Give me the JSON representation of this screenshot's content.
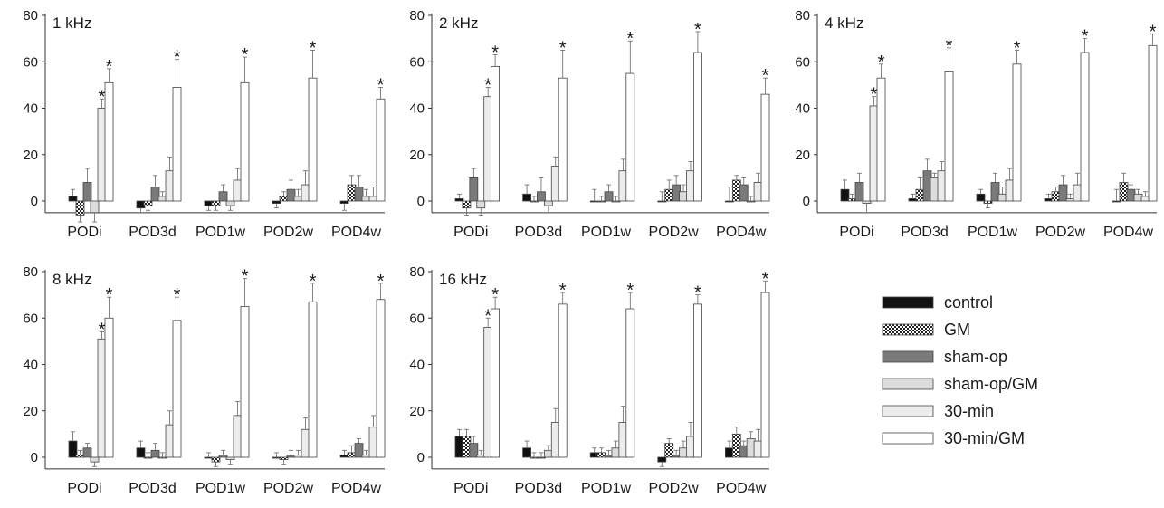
{
  "colors": {
    "control": "#111111",
    "GM": "pattern-checker",
    "sham-op": "#7a7a7a",
    "sham-op/GM": "#dcdcdc",
    "30-min": "#ececec",
    "30-min/GM": "#ffffff",
    "axis": "#333333"
  },
  "legend": {
    "items": [
      {
        "name": "control"
      },
      {
        "name": "GM"
      },
      {
        "name": "sham-op"
      },
      {
        "name": "sham-op/GM"
      },
      {
        "name": "30-min"
      },
      {
        "name": "30-min/GM"
      }
    ]
  },
  "chart_data": [
    {
      "type": "bar",
      "title": "1 kHz",
      "categories": [
        "PODi",
        "POD3d",
        "POD1w",
        "POD2w",
        "POD4w"
      ],
      "ylim": [
        -5,
        80
      ],
      "yticks": [
        "0",
        "20",
        "40",
        "60",
        "80"
      ],
      "series": [
        {
          "name": "control",
          "values": [
            2,
            -3,
            -2,
            -1,
            -1
          ],
          "errors": [
            3,
            2,
            2,
            2,
            3
          ]
        },
        {
          "name": "GM",
          "values": [
            -6,
            -2,
            -2,
            2,
            7
          ],
          "errors": [
            3,
            2,
            2,
            2,
            4
          ]
        },
        {
          "name": "sham-op",
          "values": [
            8,
            6,
            4,
            5,
            6
          ],
          "errors": [
            6,
            5,
            3,
            4,
            5
          ]
        },
        {
          "name": "sham-op/GM",
          "values": [
            -5,
            2,
            -2,
            2,
            2
          ],
          "errors": [
            4,
            2,
            2,
            3,
            3
          ]
        },
        {
          "name": "30-min",
          "values": [
            40,
            13,
            9,
            7,
            2
          ],
          "errors": [
            4,
            6,
            5,
            6,
            4
          ]
        },
        {
          "name": "30-min/GM",
          "values": [
            51,
            49,
            51,
            53,
            44
          ],
          "errors": [
            6,
            12,
            11,
            12,
            5
          ]
        }
      ],
      "annotations": [
        {
          "text": "*",
          "category": "PODi",
          "series": "30-min"
        },
        {
          "text": "*",
          "category": "PODi",
          "series": "30-min/GM"
        },
        {
          "text": "*",
          "category": "POD3d",
          "series": "30-min/GM"
        },
        {
          "text": "*",
          "category": "POD1w",
          "series": "30-min/GM"
        },
        {
          "text": "*",
          "category": "POD2w",
          "series": "30-min/GM"
        },
        {
          "text": "*",
          "category": "POD4w",
          "series": "30-min/GM"
        }
      ]
    },
    {
      "type": "bar",
      "title": "2 kHz",
      "categories": [
        "PODi",
        "POD3d",
        "POD1w",
        "POD2w",
        "POD4w"
      ],
      "ylim": [
        -5,
        80
      ],
      "yticks": [
        "0",
        "20",
        "40",
        "60",
        "80"
      ],
      "series": [
        {
          "name": "control",
          "values": [
            1,
            3,
            0,
            0,
            0
          ],
          "errors": [
            2,
            4,
            5,
            4,
            6
          ]
        },
        {
          "name": "GM",
          "values": [
            -3,
            0,
            0,
            5,
            9
          ],
          "errors": [
            3,
            2,
            2,
            4,
            2
          ]
        },
        {
          "name": "sham-op",
          "values": [
            10,
            4,
            4,
            7,
            7
          ],
          "errors": [
            4,
            6,
            3,
            4,
            3
          ]
        },
        {
          "name": "sham-op/GM",
          "values": [
            -3,
            -2,
            0,
            4,
            0
          ],
          "errors": [
            3,
            3,
            2,
            3,
            2
          ]
        },
        {
          "name": "30-min",
          "values": [
            45,
            15,
            13,
            13,
            8
          ],
          "errors": [
            4,
            4,
            5,
            4,
            4
          ]
        },
        {
          "name": "30-min/GM",
          "values": [
            58,
            53,
            55,
            64,
            46
          ],
          "errors": [
            5,
            12,
            14,
            9,
            7
          ]
        }
      ],
      "annotations": [
        {
          "text": "*",
          "category": "PODi",
          "series": "30-min"
        },
        {
          "text": "*",
          "category": "PODi",
          "series": "30-min/GM"
        },
        {
          "text": "*",
          "category": "POD3d",
          "series": "30-min/GM"
        },
        {
          "text": "*",
          "category": "POD1w",
          "series": "30-min/GM"
        },
        {
          "text": "*",
          "category": "POD2w",
          "series": "30-min/GM"
        },
        {
          "text": "*",
          "category": "POD4w",
          "series": "30-min/GM"
        }
      ]
    },
    {
      "type": "bar",
      "title": "4 kHz",
      "categories": [
        "PODi",
        "POD3d",
        "POD1w",
        "POD2w",
        "POD4w"
      ],
      "ylim": [
        -5,
        80
      ],
      "yticks": [
        "0",
        "20",
        "40",
        "60",
        "80"
      ],
      "series": [
        {
          "name": "control",
          "values": [
            5,
            1,
            3,
            1,
            0
          ],
          "errors": [
            4,
            2,
            2,
            2,
            5
          ]
        },
        {
          "name": "GM",
          "values": [
            1,
            5,
            -1,
            4,
            8
          ],
          "errors": [
            2,
            5,
            2,
            2,
            4
          ]
        },
        {
          "name": "sham-op",
          "values": [
            8,
            13,
            8,
            7,
            5
          ],
          "errors": [
            4,
            5,
            4,
            4,
            2
          ]
        },
        {
          "name": "sham-op/GM",
          "values": [
            -1,
            10,
            3,
            1,
            3
          ],
          "errors": [
            4,
            2,
            3,
            2,
            2
          ]
        },
        {
          "name": "30-min",
          "values": [
            41,
            13,
            9,
            7,
            2
          ],
          "errors": [
            4,
            4,
            5,
            5,
            2
          ]
        },
        {
          "name": "30-min/GM",
          "values": [
            53,
            56,
            59,
            64,
            67
          ],
          "errors": [
            6,
            10,
            6,
            6,
            5
          ]
        }
      ],
      "annotations": [
        {
          "text": "*",
          "category": "PODi",
          "series": "30-min"
        },
        {
          "text": "*",
          "category": "PODi",
          "series": "30-min/GM"
        },
        {
          "text": "*",
          "category": "POD3d",
          "series": "30-min/GM"
        },
        {
          "text": "*",
          "category": "POD1w",
          "series": "30-min/GM"
        },
        {
          "text": "*",
          "category": "POD2w",
          "series": "30-min/GM"
        },
        {
          "text": "*",
          "category": "POD4w",
          "series": "30-min/GM"
        }
      ]
    },
    {
      "type": "bar",
      "title": "8 kHz",
      "categories": [
        "PODi",
        "POD3d",
        "POD1w",
        "POD2w",
        "POD4w"
      ],
      "ylim": [
        -5,
        80
      ],
      "yticks": [
        "0",
        "20",
        "40",
        "60",
        "80"
      ],
      "series": [
        {
          "name": "control",
          "values": [
            7,
            4,
            0,
            0,
            1
          ],
          "errors": [
            4,
            3,
            2,
            2,
            2
          ]
        },
        {
          "name": "GM",
          "values": [
            1,
            0,
            -2,
            -1,
            2
          ],
          "errors": [
            2,
            2,
            2,
            2,
            3
          ]
        },
        {
          "name": "sham-op",
          "values": [
            4,
            3,
            1,
            1,
            6
          ],
          "errors": [
            2,
            3,
            2,
            2,
            2
          ]
        },
        {
          "name": "sham-op/GM",
          "values": [
            -2,
            0,
            -1,
            1,
            1
          ],
          "errors": [
            2,
            2,
            2,
            2,
            2
          ]
        },
        {
          "name": "30-min",
          "values": [
            51,
            14,
            18,
            12,
            13
          ],
          "errors": [
            3,
            6,
            6,
            5,
            5
          ]
        },
        {
          "name": "30-min/GM",
          "values": [
            60,
            59,
            65,
            67,
            68
          ],
          "errors": [
            9,
            10,
            12,
            8,
            7
          ]
        }
      ],
      "annotations": [
        {
          "text": "*",
          "category": "PODi",
          "series": "30-min"
        },
        {
          "text": "*",
          "category": "PODi",
          "series": "30-min/GM"
        },
        {
          "text": "*",
          "category": "POD3d",
          "series": "30-min/GM"
        },
        {
          "text": "*",
          "category": "POD1w",
          "series": "30-min/GM"
        },
        {
          "text": "*",
          "category": "POD2w",
          "series": "30-min/GM"
        },
        {
          "text": "*",
          "category": "POD4w",
          "series": "30-min/GM"
        }
      ]
    },
    {
      "type": "bar",
      "title": "16 kHz",
      "categories": [
        "PODi",
        "POD3d",
        "POD1w",
        "POD2w",
        "POD4w"
      ],
      "ylim": [
        -5,
        80
      ],
      "yticks": [
        "0",
        "20",
        "40",
        "60",
        "80"
      ],
      "series": [
        {
          "name": "control",
          "values": [
            9,
            4,
            2,
            -2,
            4
          ],
          "errors": [
            3,
            3,
            2,
            2,
            3
          ]
        },
        {
          "name": "GM",
          "values": [
            9,
            0,
            2,
            6,
            10
          ],
          "errors": [
            3,
            2,
            2,
            2,
            3
          ]
        },
        {
          "name": "sham-op",
          "values": [
            6,
            0,
            1,
            1,
            5
          ],
          "errors": [
            3,
            2,
            2,
            2,
            2
          ]
        },
        {
          "name": "sham-op/GM",
          "values": [
            1,
            3,
            4,
            4,
            8
          ],
          "errors": [
            2,
            2,
            3,
            3,
            3
          ]
        },
        {
          "name": "30-min",
          "values": [
            56,
            15,
            15,
            9,
            7
          ],
          "errors": [
            4,
            6,
            7,
            6,
            5
          ]
        },
        {
          "name": "30-min/GM",
          "values": [
            64,
            66,
            64,
            66,
            71
          ],
          "errors": [
            5,
            5,
            7,
            4,
            5
          ]
        }
      ],
      "annotations": [
        {
          "text": "*",
          "category": "PODi",
          "series": "30-min"
        },
        {
          "text": "*",
          "category": "PODi",
          "series": "30-min/GM"
        },
        {
          "text": "*",
          "category": "POD3d",
          "series": "30-min/GM"
        },
        {
          "text": "*",
          "category": "POD1w",
          "series": "30-min/GM"
        },
        {
          "text": "*",
          "category": "POD2w",
          "series": "30-min/GM"
        },
        {
          "text": "*",
          "category": "POD4w",
          "series": "30-min/GM"
        }
      ]
    }
  ]
}
